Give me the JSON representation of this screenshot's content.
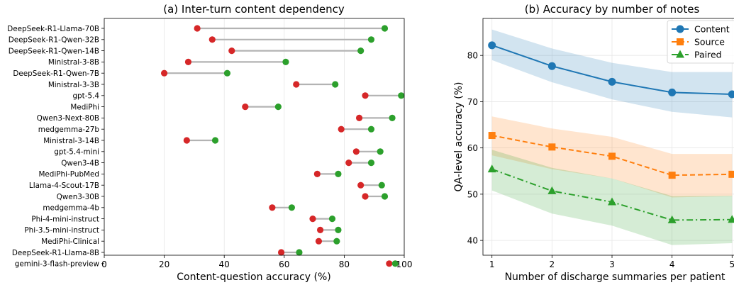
{
  "chart_data": [
    {
      "type": "dumbbell",
      "title": "(a) Inter-turn content dependency",
      "xlabel": "Content-question accuracy (%)",
      "ylabel": "",
      "xlim": [
        0,
        100
      ],
      "xticks": [
        "0",
        "20",
        "40",
        "60",
        "80",
        "100"
      ],
      "grid": true,
      "colors": {
        "red_dot": "#d62728",
        "green_dot": "#2ca02c",
        "connector": "#b3b3b3"
      },
      "series": [
        {
          "name": "red-dot",
          "values": [
            31,
            36,
            42.5,
            28,
            20,
            64,
            87,
            47,
            85,
            79,
            27.5,
            84,
            81.5,
            71,
            85.5,
            87,
            56,
            69.5,
            72,
            71.5,
            59,
            95
          ]
        },
        {
          "name": "green-dot",
          "values": [
            93.5,
            89,
            85.5,
            60.5,
            41,
            77,
            99,
            58,
            96,
            89,
            37,
            92,
            89,
            78,
            92.5,
            93.5,
            62.5,
            76,
            78,
            77.5,
            65,
            97
          ]
        }
      ],
      "categories": [
        "DeepSeek-R1-Llama-70B",
        "DeepSeek-R1-Qwen-32B",
        "DeepSeek-R1-Qwen-14B",
        "Ministral-3-8B",
        "DeepSeek-R1-Qwen-7B",
        "Ministral-3-3B",
        "gpt-5.4",
        "MediPhi",
        "Qwen3-Next-80B",
        "medgemma-27b",
        "Ministral-3-14B",
        "gpt-5.4-mini",
        "Qwen3-4B",
        "MediPhi-PubMed",
        "Llama-4-Scout-17B",
        "Qwen3-30B",
        "medgemma-4b",
        "Phi-4-mini-instruct",
        "Phi-3.5-mini-instruct",
        "MediPhi-Clinical",
        "DeepSeek-R1-Llama-8B",
        "gemini-3-flash-preview"
      ]
    },
    {
      "type": "line",
      "title": "(b) Accuracy by number of notes",
      "xlabel": "Number of discharge summaries per patient",
      "ylabel": "QA-level accuracy (%)",
      "x": [
        1,
        2,
        3,
        4,
        5
      ],
      "xticks": [
        "1",
        "2",
        "3",
        "4",
        "5"
      ],
      "ylim": [
        36.8,
        88
      ],
      "yticks": [
        "40",
        "50",
        "60",
        "70",
        "80"
      ],
      "grid": true,
      "legend": "top-right",
      "series": [
        {
          "name": "Content",
          "color": "#1f77b4",
          "marker": "circle",
          "dash": "solid",
          "values": [
            82.2,
            77.7,
            74.3,
            72.0,
            71.6
          ],
          "lower": [
            79.0,
            74.2,
            70.5,
            67.8,
            66.6
          ],
          "upper": [
            85.6,
            81.5,
            78.4,
            76.4,
            76.4
          ]
        },
        {
          "name": "Source",
          "color": "#ff7f0e",
          "marker": "square",
          "dash": "dashed",
          "values": [
            62.7,
            60.2,
            58.2,
            54.1,
            54.3
          ],
          "lower": [
            58.4,
            55.4,
            53.4,
            49.3,
            49.6
          ],
          "upper": [
            66.8,
            64.2,
            62.4,
            58.7,
            58.7
          ]
        },
        {
          "name": "Paired",
          "color": "#2ca02c",
          "marker": "triangle",
          "dash": "dashdot",
          "values": [
            55.4,
            50.7,
            48.3,
            44.4,
            44.5
          ],
          "lower": [
            50.8,
            45.8,
            43.2,
            39.0,
            39.4
          ],
          "upper": [
            59.6,
            55.7,
            53.4,
            49.6,
            49.7
          ]
        }
      ]
    }
  ]
}
